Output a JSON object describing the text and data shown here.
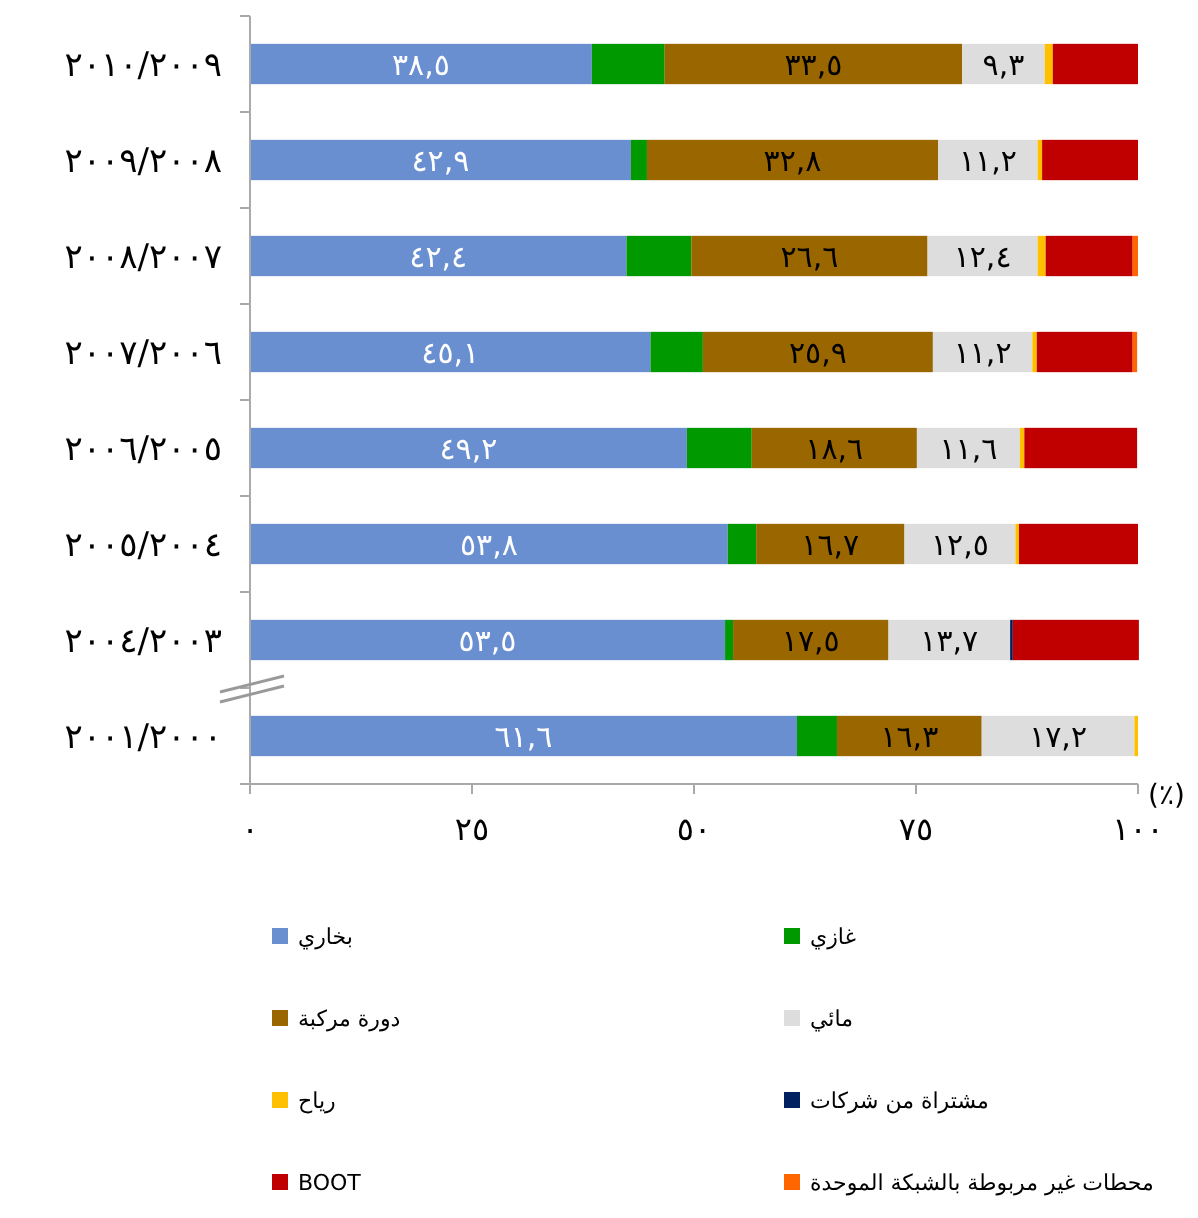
{
  "chart_data": {
    "type": "bar",
    "orientation": "horizontal",
    "stacked": true,
    "xlabel": "(٪)",
    "categories": [
      "٢٠١٠/٢٠٠٩",
      "٢٠٠٩/٢٠٠٨",
      "٢٠٠٨/٢٠٠٧",
      "٢٠٠٧/٢٠٠٦",
      "٢٠٠٦/٢٠٠٥",
      "٢٠٠٥/٢٠٠٤",
      "٢٠٠٤/٢٠٠٣",
      "٢٠٠١/٢٠٠٠"
    ],
    "xlim": [
      0,
      100
    ],
    "xticks": [
      {
        "value": 0,
        "label": "٠"
      },
      {
        "value": 25,
        "label": "٢٥"
      },
      {
        "value": 50,
        "label": "٥٠"
      },
      {
        "value": 75,
        "label": "٧٥"
      },
      {
        "value": 100,
        "label": "١٠٠"
      }
    ],
    "grid": false,
    "legend": "bottom",
    "series": [
      {
        "name": "بخاري",
        "color": "#6a8fd0",
        "values": [
          38.5,
          42.9,
          42.4,
          45.1,
          49.2,
          53.8,
          53.5,
          61.6
        ],
        "value_labels": [
          "٣٨,٥",
          "٤٢,٩",
          "٤٢,٤",
          "٤٥,١",
          "٤٩,٢",
          "٥٣,٨",
          "٥٣,٥",
          "٦١,٦"
        ]
      },
      {
        "name": "غازي",
        "color": "#009900",
        "values": [
          8.2,
          1.8,
          7.3,
          5.9,
          7.3,
          3.2,
          0.9,
          4.5
        ]
      },
      {
        "name": "دورة مركبة",
        "color": "#996600",
        "values": [
          33.5,
          32.8,
          26.6,
          25.9,
          18.6,
          16.7,
          17.5,
          16.3
        ],
        "value_labels": [
          "٣٣,٥",
          "٣٢,٨",
          "٢٦,٦",
          "٢٥,٩",
          "١٨,٦",
          "١٦,٧",
          "١٧,٥",
          "١٦,٣"
        ]
      },
      {
        "name": "مائي",
        "color": "#dddddd",
        "values": [
          9.3,
          11.2,
          12.4,
          11.2,
          11.6,
          12.5,
          13.7,
          17.2
        ],
        "value_labels": [
          "٩,٣",
          "١١,٢",
          "١٢,٤",
          "١١,٢",
          "١١,٦",
          "١٢,٥",
          "١٣,٧",
          "١٧,٢"
        ]
      },
      {
        "name": "رياح",
        "color": "#ffc000",
        "values": [
          0.9,
          0.5,
          0.9,
          0.5,
          0.5,
          0.4,
          null,
          0.4
        ]
      },
      {
        "name": "مشتراة من شركات",
        "color": "#002060",
        "values": [
          null,
          null,
          null,
          null,
          null,
          null,
          0.3,
          null
        ]
      },
      {
        "name": "BOOT",
        "color": "#c00000",
        "values": [
          9.6,
          10.8,
          9.8,
          10.8,
          12.7,
          13.4,
          14.2,
          null
        ]
      },
      {
        "name": "محطات غير مربوطة بالشبكة الموحدة",
        "color": "#ff6600",
        "values": [
          null,
          null,
          0.6,
          0.5,
          null,
          null,
          null,
          null
        ]
      }
    ]
  }
}
